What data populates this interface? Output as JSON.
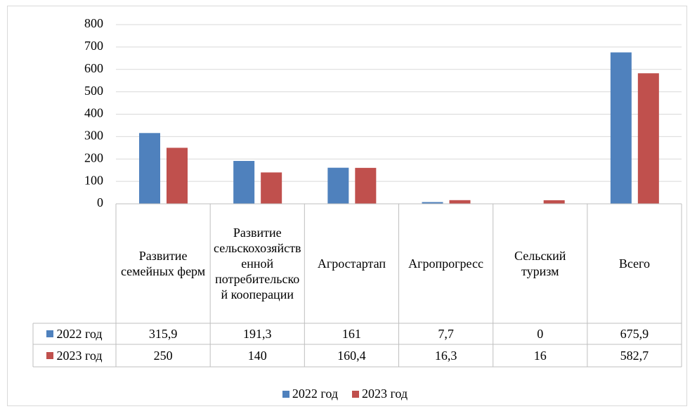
{
  "chart_data": {
    "type": "bar",
    "categories": [
      "Развитие семейных ферм",
      "Развитие сельскохозяйственной потребительской кооперации",
      "Агростартап",
      "Агропрогресс",
      "Сельский туризм",
      "Всего"
    ],
    "series": [
      {
        "name": "2022 год",
        "color": "#4f81bd",
        "values": [
          315.9,
          191.3,
          161,
          7.7,
          0,
          675.9
        ],
        "value_labels": [
          "315,9",
          "191,3",
          "161",
          "7,7",
          "0",
          "675,9"
        ]
      },
      {
        "name": "2023 год",
        "color": "#c0504d",
        "values": [
          250,
          140,
          160.4,
          16.3,
          16,
          582.7
        ],
        "value_labels": [
          "250",
          "140",
          "160,4",
          "16,3",
          "16",
          "582,7"
        ]
      }
    ],
    "ylim": [
      0,
      800
    ],
    "yticks": [
      0,
      100,
      200,
      300,
      400,
      500,
      600,
      700,
      800
    ],
    "grid": true,
    "legend": "bottom"
  }
}
